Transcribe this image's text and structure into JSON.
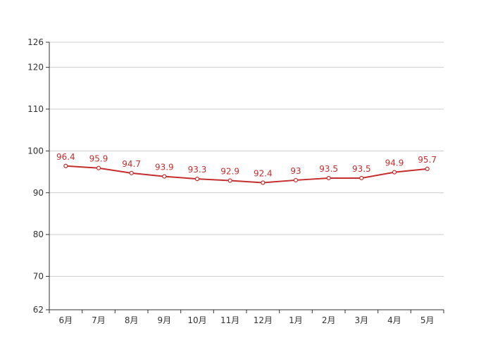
{
  "chart_data": {
    "type": "line",
    "categories": [
      "6月",
      "7月",
      "8月",
      "9月",
      "10月",
      "11月",
      "12月",
      "1月",
      "2月",
      "3月",
      "4月",
      "5月"
    ],
    "series": [
      {
        "values": [
          96.4,
          95.9,
          94.7,
          93.9,
          93.3,
          92.9,
          92.4,
          93,
          93.5,
          93.5,
          94.9,
          95.7
        ]
      }
    ],
    "ylim": [
      62,
      126
    ],
    "yticks": [
      62,
      70,
      80,
      90,
      100,
      110,
      120,
      126
    ],
    "grid": true,
    "colors": {
      "line": "#c62d2d",
      "label": "#c62d2d",
      "grid": "#cccccc",
      "axis": "#333333",
      "marker_fill": "#ffffff"
    }
  }
}
